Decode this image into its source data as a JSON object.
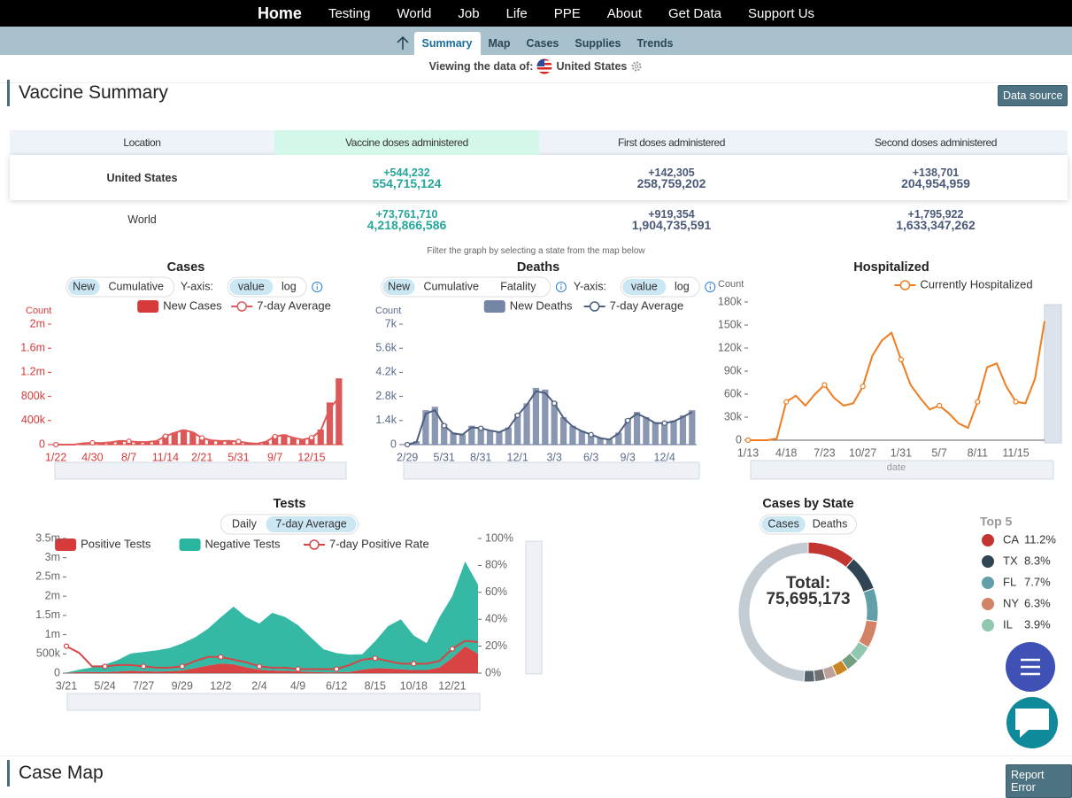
{
  "nav": {
    "home": "Home",
    "items": [
      "Testing",
      "World",
      "Job",
      "Life",
      "PPE",
      "About",
      "Get Data",
      "Support Us"
    ]
  },
  "subnav": {
    "items": [
      "Summary",
      "Map",
      "Cases",
      "Supplies",
      "Trends"
    ],
    "active": 0
  },
  "viewing": {
    "label": "Viewing the data of:",
    "location": "United States"
  },
  "vaccine_summary": {
    "title": "Vaccine Summary",
    "button": "Data source",
    "columns": [
      "Location",
      "Vaccine doses administered",
      "First doses administered",
      "Second doses administered"
    ],
    "rows": [
      {
        "location": "United States",
        "cells": [
          {
            "change": "+544,232",
            "total": "554,715,124"
          },
          {
            "change": "+142,305",
            "total": "258,759,202"
          },
          {
            "change": "+138,701",
            "total": "204,954,959"
          }
        ]
      },
      {
        "location": "World",
        "cells": [
          {
            "change": "+73,761,710",
            "total": "4,218,866,586"
          },
          {
            "change": "+919,354",
            "total": "1,904,735,591"
          },
          {
            "change": "+1,795,922",
            "total": "1,633,347,262"
          }
        ]
      }
    ]
  },
  "filter_note": "Filter the graph by selecting a state from the map below",
  "chart_data": [
    {
      "type": "bar",
      "title": "Cases",
      "controls": [
        {
          "buttons": [
            "New",
            "Cumulative"
          ],
          "active": 0
        },
        {
          "text": "Y-axis:"
        },
        {
          "buttons": [
            "value",
            "log"
          ],
          "active": 0
        },
        {
          "icon": "info"
        }
      ],
      "y_label": "Count",
      "axis_color": "#d63a3a",
      "legend": "top",
      "categories": [
        "1/22",
        null,
        null,
        null,
        "4/30",
        null,
        null,
        null,
        "8/7",
        null,
        null,
        null,
        "11/14",
        null,
        null,
        null,
        "2/21",
        null,
        null,
        null,
        "5/31",
        null,
        null,
        null,
        "9/7",
        null,
        null,
        null,
        "12/15",
        null,
        null,
        null
      ],
      "series": [
        {
          "name": "New Cases",
          "type": "bar",
          "color": "#d63a3a",
          "values": [
            0,
            0,
            500,
            25000,
            30000,
            25000,
            40000,
            65000,
            55000,
            40000,
            45000,
            60000,
            150000,
            200000,
            250000,
            200000,
            100000,
            70000,
            60000,
            65000,
            50000,
            25000,
            15000,
            50000,
            140000,
            170000,
            110000,
            80000,
            120000,
            250000,
            700000,
            1100000
          ]
        },
        {
          "name": "7-day Average",
          "type": "line",
          "color": "#e05a5a",
          "values": [
            0,
            0,
            300,
            22000,
            29000,
            26000,
            38000,
            62000,
            55000,
            42000,
            45000,
            58000,
            140000,
            195000,
            240000,
            205000,
            110000,
            72000,
            60000,
            62000,
            52000,
            27000,
            14000,
            48000,
            135000,
            160000,
            115000,
            82000,
            115000,
            230000,
            600000,
            780000
          ]
        }
      ],
      "ylim": [
        0,
        2000000
      ],
      "yticks": [
        0,
        {
          "value": 400000,
          "label": "400k"
        },
        {
          "value": 800000,
          "label": "800k"
        },
        {
          "value": 1200000,
          "label": "1.2m"
        },
        {
          "value": 1600000,
          "label": "1.6m"
        },
        {
          "value": 2000000,
          "label": "2m"
        }
      ]
    },
    {
      "type": "bar",
      "title": "Deaths",
      "controls": [
        {
          "buttons": [
            "New",
            "Cumulative",
            "Fatality"
          ],
          "active": 0
        },
        {
          "icon": "info"
        },
        {
          "text": "Y-axis:"
        },
        {
          "buttons": [
            "value",
            "log"
          ],
          "active": 0
        },
        {
          "icon": "info"
        }
      ],
      "y_label": "Count",
      "axis_color": "#5b6b8c",
      "legend": "top",
      "categories": [
        "2/29",
        null,
        null,
        null,
        "5/31",
        null,
        null,
        null,
        "8/31",
        null,
        null,
        null,
        "12/1",
        null,
        null,
        null,
        "3/3",
        null,
        null,
        null,
        "6/3",
        null,
        null,
        null,
        "9/3",
        null,
        null,
        null,
        "12/4",
        null,
        null,
        null
      ],
      "series": [
        {
          "name": "New Deaths",
          "type": "bar",
          "color": "#7585a5",
          "values": [
            0,
            200,
            2000,
            2200,
            1200,
            700,
            600,
            1100,
            1000,
            850,
            750,
            1000,
            1800,
            2400,
            3300,
            3200,
            2500,
            1600,
            1100,
            800,
            600,
            400,
            300,
            700,
            1500,
            1900,
            1600,
            1300,
            1300,
            1400,
            1700,
            2000
          ]
        },
        {
          "name": "7-day Average",
          "type": "line",
          "color": "#4f5f80",
          "values": [
            0,
            150,
            1800,
            2000,
            1100,
            650,
            580,
            1000,
            950,
            820,
            720,
            950,
            1700,
            2300,
            3100,
            3000,
            2400,
            1550,
            1050,
            780,
            580,
            380,
            290,
            650,
            1400,
            1800,
            1550,
            1250,
            1250,
            1350,
            1600,
            1900
          ]
        }
      ],
      "ylim": [
        0,
        7000
      ],
      "yticks": [
        0,
        {
          "value": 1400,
          "label": "1.4k"
        },
        {
          "value": 2800,
          "label": "2.8k"
        },
        {
          "value": 4200,
          "label": "4.2k"
        },
        {
          "value": 5600,
          "label": "5.6k"
        },
        {
          "value": 7000,
          "label": "7k"
        }
      ]
    },
    {
      "type": "line",
      "title": "Hospitalized",
      "y_label": "Count",
      "x_label": "date",
      "axis_color": "#666",
      "legend": "top-right",
      "categories": [
        "1/13",
        null,
        null,
        null,
        "4/18",
        null,
        null,
        null,
        "7/23",
        null,
        null,
        null,
        "10/27",
        null,
        null,
        null,
        "1/31",
        null,
        null,
        null,
        "5/7",
        null,
        null,
        null,
        "8/11",
        null,
        null,
        null,
        "11/15",
        null,
        null,
        null
      ],
      "series": [
        {
          "name": "Currently Hospitalized",
          "type": "line",
          "color": "#f07c20",
          "values": [
            0,
            0,
            0,
            2000,
            50000,
            58000,
            45000,
            60000,
            72000,
            55000,
            45000,
            48000,
            70000,
            110000,
            130000,
            140000,
            105000,
            72000,
            55000,
            40000,
            45000,
            35000,
            22000,
            16000,
            50000,
            95000,
            100000,
            70000,
            50000,
            48000,
            80000,
            155000
          ]
        }
      ],
      "ylim": [
        0,
        180000
      ],
      "yticks": [
        0,
        {
          "value": 30000,
          "label": "30k"
        },
        {
          "value": 60000,
          "label": "60k"
        },
        {
          "value": 90000,
          "label": "90k"
        },
        {
          "value": 120000,
          "label": "120k"
        },
        {
          "value": 150000,
          "label": "150k"
        },
        {
          "value": 180000,
          "label": "180k"
        }
      ]
    },
    {
      "type": "area",
      "title": "Tests",
      "stack": true,
      "axis_color": "#666",
      "legend": "top",
      "controls": [
        {
          "buttons": [
            "Daily",
            "7-day Average"
          ],
          "active": 1
        }
      ],
      "categories": [
        "3/21",
        null,
        null,
        "5/24",
        null,
        null,
        "7/27",
        null,
        null,
        "9/29",
        null,
        null,
        "12/2",
        null,
        null,
        "2/4",
        null,
        null,
        "4/9",
        null,
        null,
        "6/12",
        null,
        null,
        "8/15",
        null,
        null,
        "10/18",
        null,
        null,
        "12/21",
        null,
        null
      ],
      "series": [
        {
          "name": "Positive Tests",
          "type": "area",
          "color": "#d63a3a",
          "values": [
            5000,
            30000,
            30000,
            25000,
            40000,
            60000,
            50000,
            40000,
            50000,
            70000,
            130000,
            200000,
            250000,
            230000,
            150000,
            90000,
            70000,
            60000,
            50000,
            30000,
            20000,
            20000,
            30000,
            90000,
            130000,
            120000,
            100000,
            80000,
            80000,
            150000,
            400000,
            700000,
            500000
          ]
        },
        {
          "name": "Negative Tests",
          "type": "area",
          "color": "#2ab5a0",
          "values": [
            10000,
            60000,
            120000,
            200000,
            300000,
            450000,
            500000,
            550000,
            600000,
            700000,
            800000,
            950000,
            1200000,
            1500000,
            1300000,
            1200000,
            1500000,
            1400000,
            1200000,
            900000,
            600000,
            500000,
            450000,
            400000,
            700000,
            1100000,
            1300000,
            900000,
            700000,
            1300000,
            1600000,
            2200000,
            1800000
          ]
        },
        {
          "name": "7-day Positive Rate",
          "type": "line",
          "axis": "y2",
          "color": "#d64545",
          "values": [
            20,
            15,
            5,
            5,
            6,
            6,
            5,
            4,
            4,
            5,
            9,
            12,
            12,
            10,
            8,
            5,
            4,
            4,
            3,
            3,
            3,
            3,
            6,
            10,
            11,
            9,
            7,
            7,
            7,
            9,
            18,
            24,
            23
          ]
        }
      ],
      "ylim": [
        0,
        3500000
      ],
      "yticks": [
        0,
        {
          "value": 500000,
          "label": "500k"
        },
        {
          "value": 1000000,
          "label": "1m"
        },
        {
          "value": 1500000,
          "label": "1.5m"
        },
        {
          "value": 2000000,
          "label": "2m"
        },
        {
          "value": 2500000,
          "label": "2.5m"
        },
        {
          "value": 3000000,
          "label": "3m"
        },
        {
          "value": 3500000,
          "label": "3.5m"
        }
      ],
      "y2lim": [
        0,
        100
      ],
      "y2ticks": [
        {
          "value": 0,
          "label": "0%"
        },
        {
          "value": 20,
          "label": "20%"
        },
        {
          "value": 40,
          "label": "40%"
        },
        {
          "value": 60,
          "label": "60%"
        },
        {
          "value": 80,
          "label": "80%"
        },
        {
          "value": 100,
          "label": "100%"
        }
      ]
    },
    {
      "type": "pie",
      "title": "Cases by State",
      "donut": true,
      "controls": [
        {
          "buttons": [
            "Cases",
            "Deaths"
          ],
          "active": 0
        }
      ],
      "center_label": "Total:",
      "center_value": "75,695,173",
      "legend_title": "Top 5",
      "categories": [
        "CA",
        "TX",
        "FL",
        "NY",
        "IL",
        null,
        null,
        null,
        null,
        null,
        null
      ],
      "values": [
        11.2,
        8.3,
        7.7,
        6.3,
        3.9,
        3.0,
        2.9,
        2.7,
        2.5,
        2.5,
        49.0
      ],
      "value_labels": [
        "11.2%",
        "8.3%",
        "7.7%",
        "6.3%",
        "3.9%",
        null,
        null,
        null,
        null,
        null,
        null
      ],
      "colors": [
        "#c23531",
        "#2f4554",
        "#61a0a8",
        "#d48265",
        "#91c7ae",
        "#749f83",
        "#ca8622",
        "#bda29a",
        "#6e7074",
        "#546570",
        "#c4ccd3"
      ]
    }
  ],
  "case_map": {
    "title": "Case Map",
    "button": "Report Error"
  }
}
